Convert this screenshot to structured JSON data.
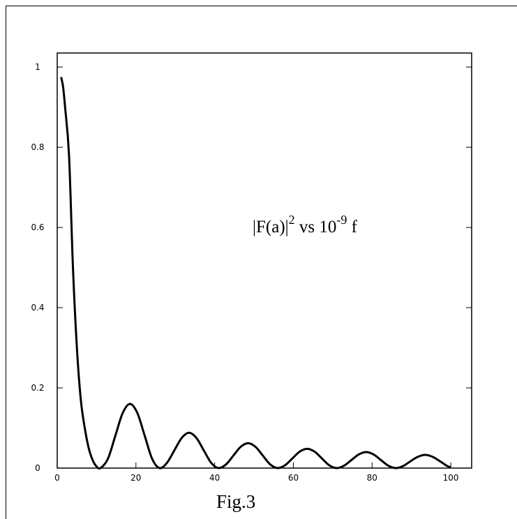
{
  "chart_data": {
    "type": "line",
    "annotation": {
      "base": "|F(a)|",
      "exp1": "2",
      "middle": " vs 10",
      "exp2": "-9",
      "end": " f"
    },
    "caption": "Fig.3",
    "x": [
      1,
      1.5,
      2,
      3,
      4,
      5,
      6,
      7,
      8,
      9,
      10,
      11,
      12.875,
      14.75,
      16.625,
      18.5,
      20.375,
      22.25,
      24.125,
      26,
      27.875,
      29.75,
      31.625,
      33.5,
      35.375,
      37.25,
      39.125,
      41,
      42.875,
      44.75,
      46.625,
      48.5,
      50.375,
      52.25,
      54.125,
      56,
      57.875,
      59.75,
      61.625,
      63.5,
      65.375,
      67.25,
      69.125,
      71,
      72.875,
      74.75,
      76.625,
      78.5,
      80.375,
      82.25,
      84.125,
      86,
      87.875,
      89.75,
      91.625,
      93.5,
      95.375,
      97.25,
      99.125,
      100
    ],
    "series": [
      {
        "color": "#000000",
        "values": [
          0.975,
          0.95,
          0.9,
          0.78,
          0.5,
          0.3,
          0.17,
          0.1,
          0.05,
          0.02,
          0.004,
          0,
          0.023,
          0.08,
          0.137,
          0.16,
          0.137,
          0.08,
          0.023,
          0,
          0.013,
          0.044,
          0.075,
          0.088,
          0.075,
          0.044,
          0.013,
          0,
          0.009,
          0.031,
          0.053,
          0.062,
          0.053,
          0.031,
          0.009,
          0,
          0.007,
          0.024,
          0.041,
          0.048,
          0.041,
          0.024,
          0.007,
          0,
          0.006,
          0.02,
          0.034,
          0.04,
          0.034,
          0.02,
          0.006,
          0,
          0.005,
          0.017,
          0.028,
          0.033,
          0.028,
          0.017,
          0.005,
          0.002
        ]
      }
    ],
    "xlim": [
      0,
      105.3
    ],
    "xticks": [
      0,
      20,
      40,
      60,
      80,
      100
    ],
    "ylim": [
      0,
      1.035
    ],
    "yticks": [
      0,
      0.2,
      0.4,
      0.6,
      0.8,
      1
    ]
  }
}
